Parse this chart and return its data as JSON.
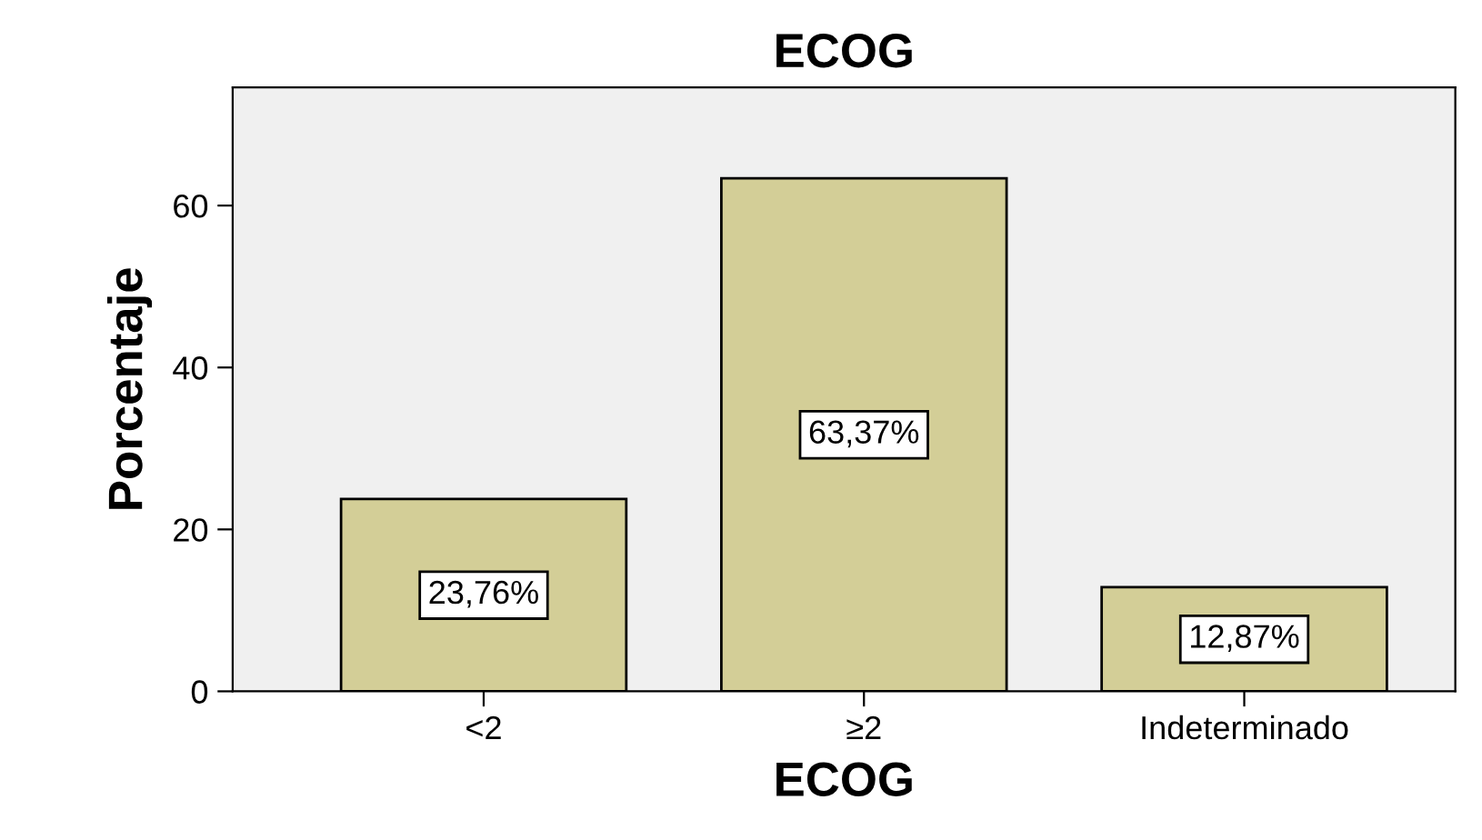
{
  "chart_data": {
    "type": "bar",
    "title": "ECOG",
    "xlabel": "ECOG",
    "ylabel": "Porcentaje",
    "categories": [
      "<2",
      "≥2",
      "Indeterminado"
    ],
    "values": [
      23.76,
      63.37,
      12.87
    ],
    "value_labels": [
      "23,76%",
      "63,37%",
      "12,87%"
    ],
    "color": "#d3ce97",
    "ylim": [
      0,
      74.6
    ],
    "yticks": [
      0,
      20,
      40,
      60
    ],
    "grid": false,
    "legend": false
  }
}
